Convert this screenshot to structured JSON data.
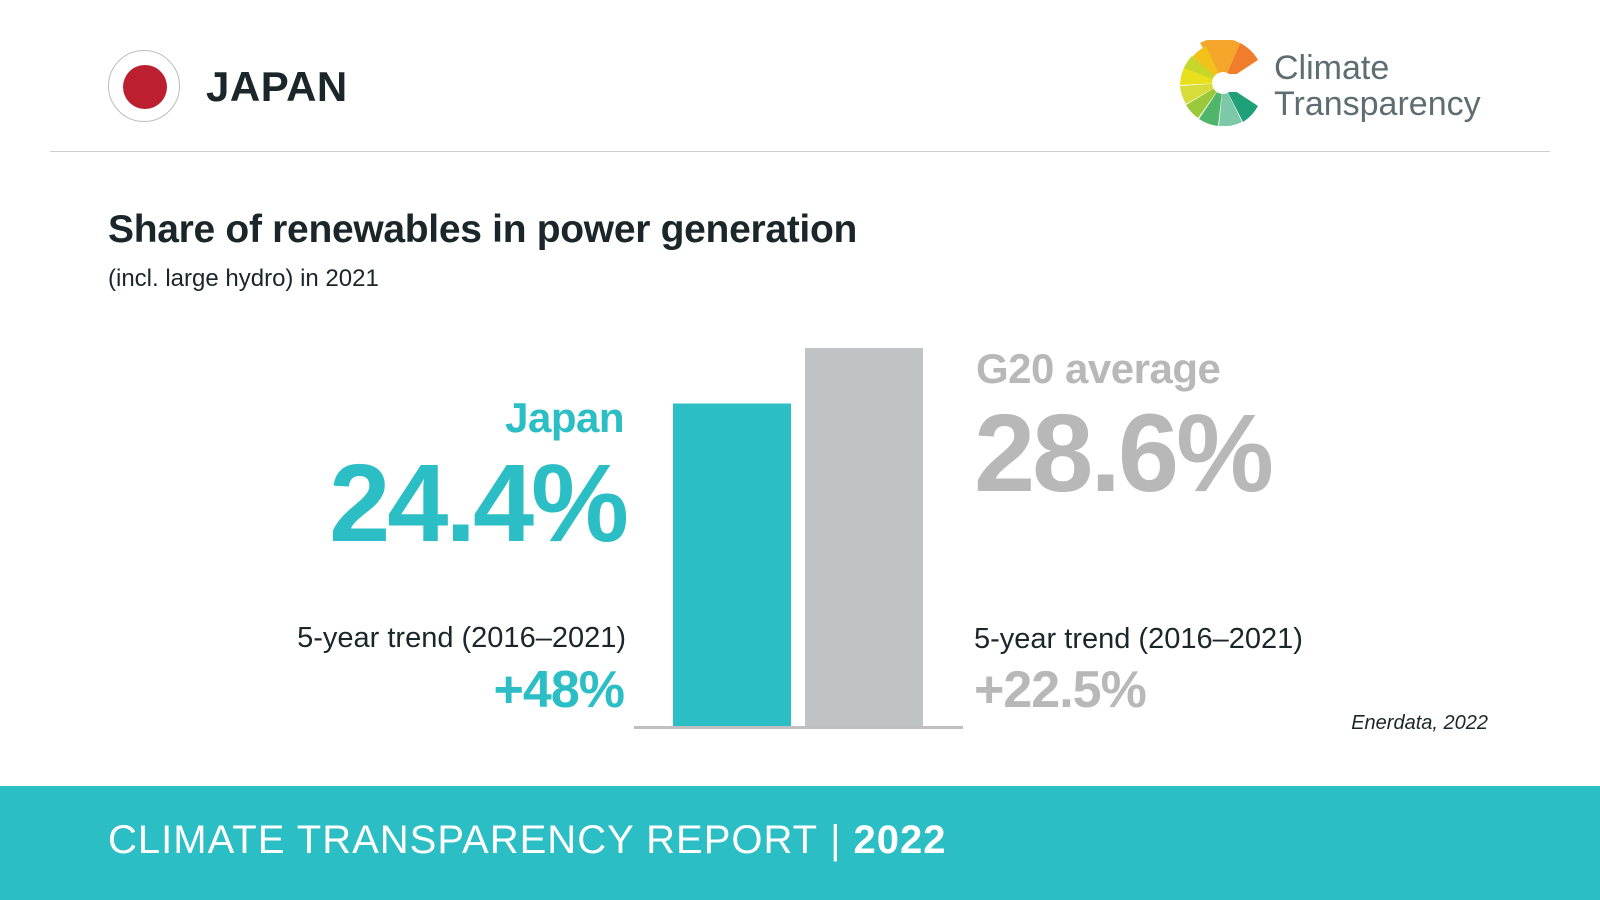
{
  "header": {
    "country": "JAPAN",
    "flag_icon": "japan-flag-icon",
    "logo": {
      "line1": "Climate",
      "line2": "Transparency",
      "icon": "climate-transparency-logo-icon"
    }
  },
  "colors": {
    "japan": "#2bbec4",
    "g20": "#c0c3c4",
    "axis": "#bfbfbf",
    "footer": "#2bbec4"
  },
  "chart_data": {
    "type": "bar",
    "title": "Share of renewables in power generation",
    "subtitle": "(incl. large hydro) in 2021",
    "categories": [
      "Japan",
      "G20 average"
    ],
    "values": [
      24.4,
      28.6
    ],
    "value_labels": [
      "24.4%",
      "28.6%"
    ],
    "ylim": [
      0,
      28.6
    ],
    "trend_label": "5-year trend (2016–2021)",
    "trends": [
      "+48%",
      "+22.5%"
    ],
    "source": "Enerdata, 2022"
  },
  "footer": {
    "title": "CLIMATE TRANSPARENCY REPORT",
    "separator": "|",
    "year": "2022"
  }
}
